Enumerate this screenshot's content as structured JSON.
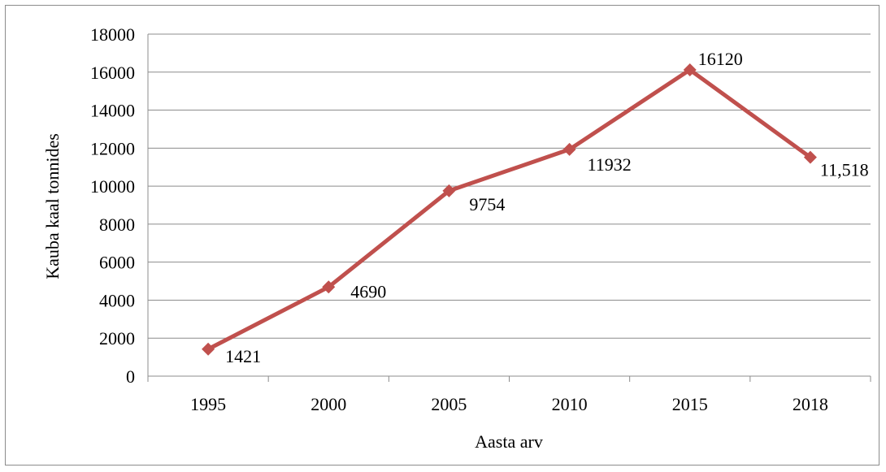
{
  "chart_data": {
    "type": "line",
    "categories": [
      "1995",
      "2000",
      "2005",
      "2010",
      "2015",
      "2018"
    ],
    "series": [
      {
        "values": [
          1421,
          4690,
          9754,
          11932,
          16120,
          11518
        ],
        "data_labels": [
          "1421",
          "4690",
          "9754",
          "11932",
          "16120",
          "11,518"
        ],
        "color": "#c0504d"
      }
    ],
    "xlabel": "Aasta arv",
    "ylabel": "Kauba kaal tonnides",
    "ylim": [
      0,
      18000
    ],
    "y_ticks": [
      0,
      2000,
      4000,
      6000,
      8000,
      10000,
      12000,
      14000,
      16000,
      18000
    ],
    "grid": true,
    "marker": "diamond",
    "gridline_color": "#8c8c8c"
  }
}
